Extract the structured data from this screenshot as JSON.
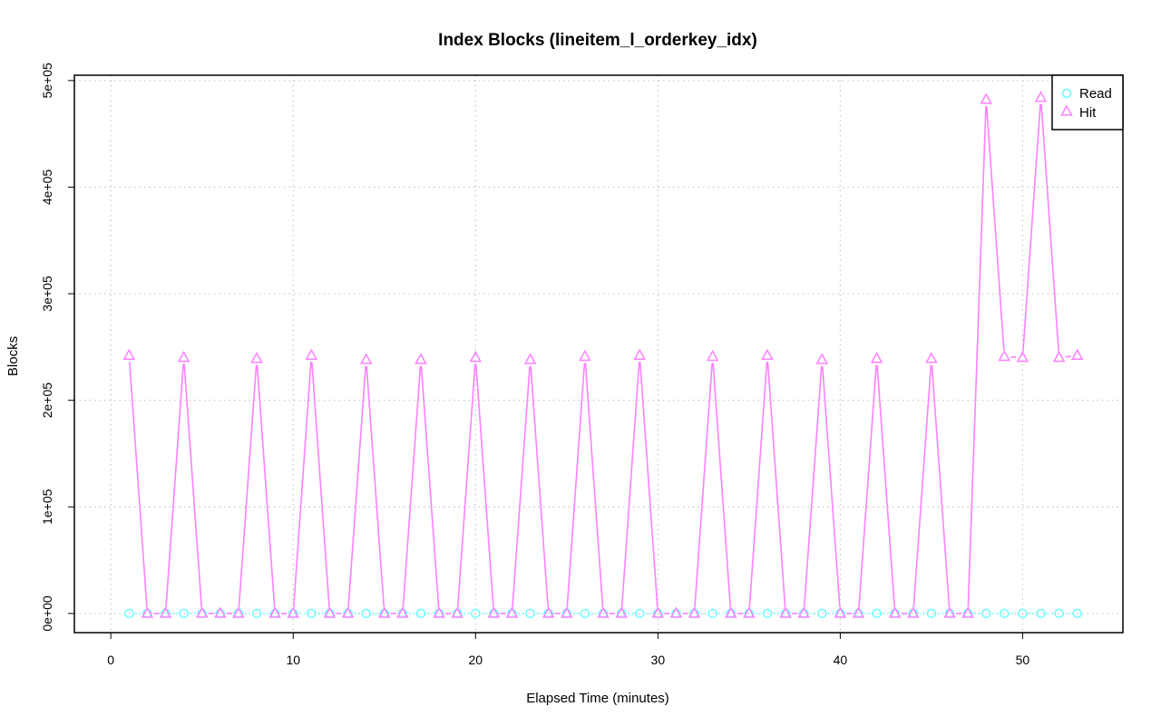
{
  "chart_data": {
    "type": "line",
    "title": "Index Blocks (lineitem_l_orderkey_idx)",
    "xlabel": "Elapsed Time (minutes)",
    "ylabel": "Blocks",
    "xlim": [
      -2,
      55.5
    ],
    "ylim": [
      -18000,
      505000
    ],
    "xticks": [
      0,
      10,
      20,
      30,
      40,
      50
    ],
    "xtick_labels": [
      "0",
      "10",
      "20",
      "30",
      "40",
      "50"
    ],
    "yticks": [
      0,
      100000,
      200000,
      300000,
      400000,
      500000
    ],
    "ytick_labels": [
      "0e+00",
      "1e+05",
      "2e+05",
      "3e+05",
      "4e+05",
      "5e+05"
    ],
    "grid": true,
    "legend_position": "top-right",
    "x": [
      1,
      2,
      3,
      4,
      5,
      6,
      7,
      8,
      9,
      10,
      11,
      12,
      13,
      14,
      15,
      16,
      17,
      18,
      19,
      20,
      21,
      22,
      23,
      24,
      25,
      26,
      27,
      28,
      29,
      30,
      31,
      32,
      33,
      34,
      35,
      36,
      37,
      38,
      39,
      40,
      41,
      42,
      43,
      44,
      45,
      46,
      47,
      48,
      49,
      50,
      51,
      52,
      53
    ],
    "series": [
      {
        "name": "Read",
        "color": "#66ffff",
        "marker": "circle",
        "values": [
          0,
          0,
          0,
          0,
          0,
          0,
          0,
          0,
          0,
          0,
          0,
          0,
          0,
          0,
          0,
          0,
          0,
          0,
          0,
          0,
          0,
          0,
          0,
          0,
          0,
          0,
          0,
          0,
          0,
          0,
          0,
          0,
          0,
          0,
          0,
          0,
          0,
          0,
          0,
          0,
          0,
          0,
          0,
          0,
          0,
          0,
          0,
          0,
          0,
          0,
          0,
          0,
          0
        ]
      },
      {
        "name": "Hit",
        "color": "#ff80ff",
        "marker": "triangle",
        "values": [
          242000,
          0,
          0,
          240000,
          0,
          0,
          0,
          239000,
          0,
          0,
          242000,
          0,
          0,
          238000,
          0,
          0,
          238000,
          0,
          0,
          240000,
          0,
          0,
          238000,
          0,
          0,
          241000,
          0,
          0,
          242000,
          0,
          0,
          0,
          241000,
          0,
          0,
          242000,
          0,
          0,
          238000,
          0,
          0,
          239000,
          0,
          0,
          239000,
          0,
          0,
          482000,
          241000,
          240000,
          484000,
          240000,
          242000
        ]
      }
    ]
  }
}
